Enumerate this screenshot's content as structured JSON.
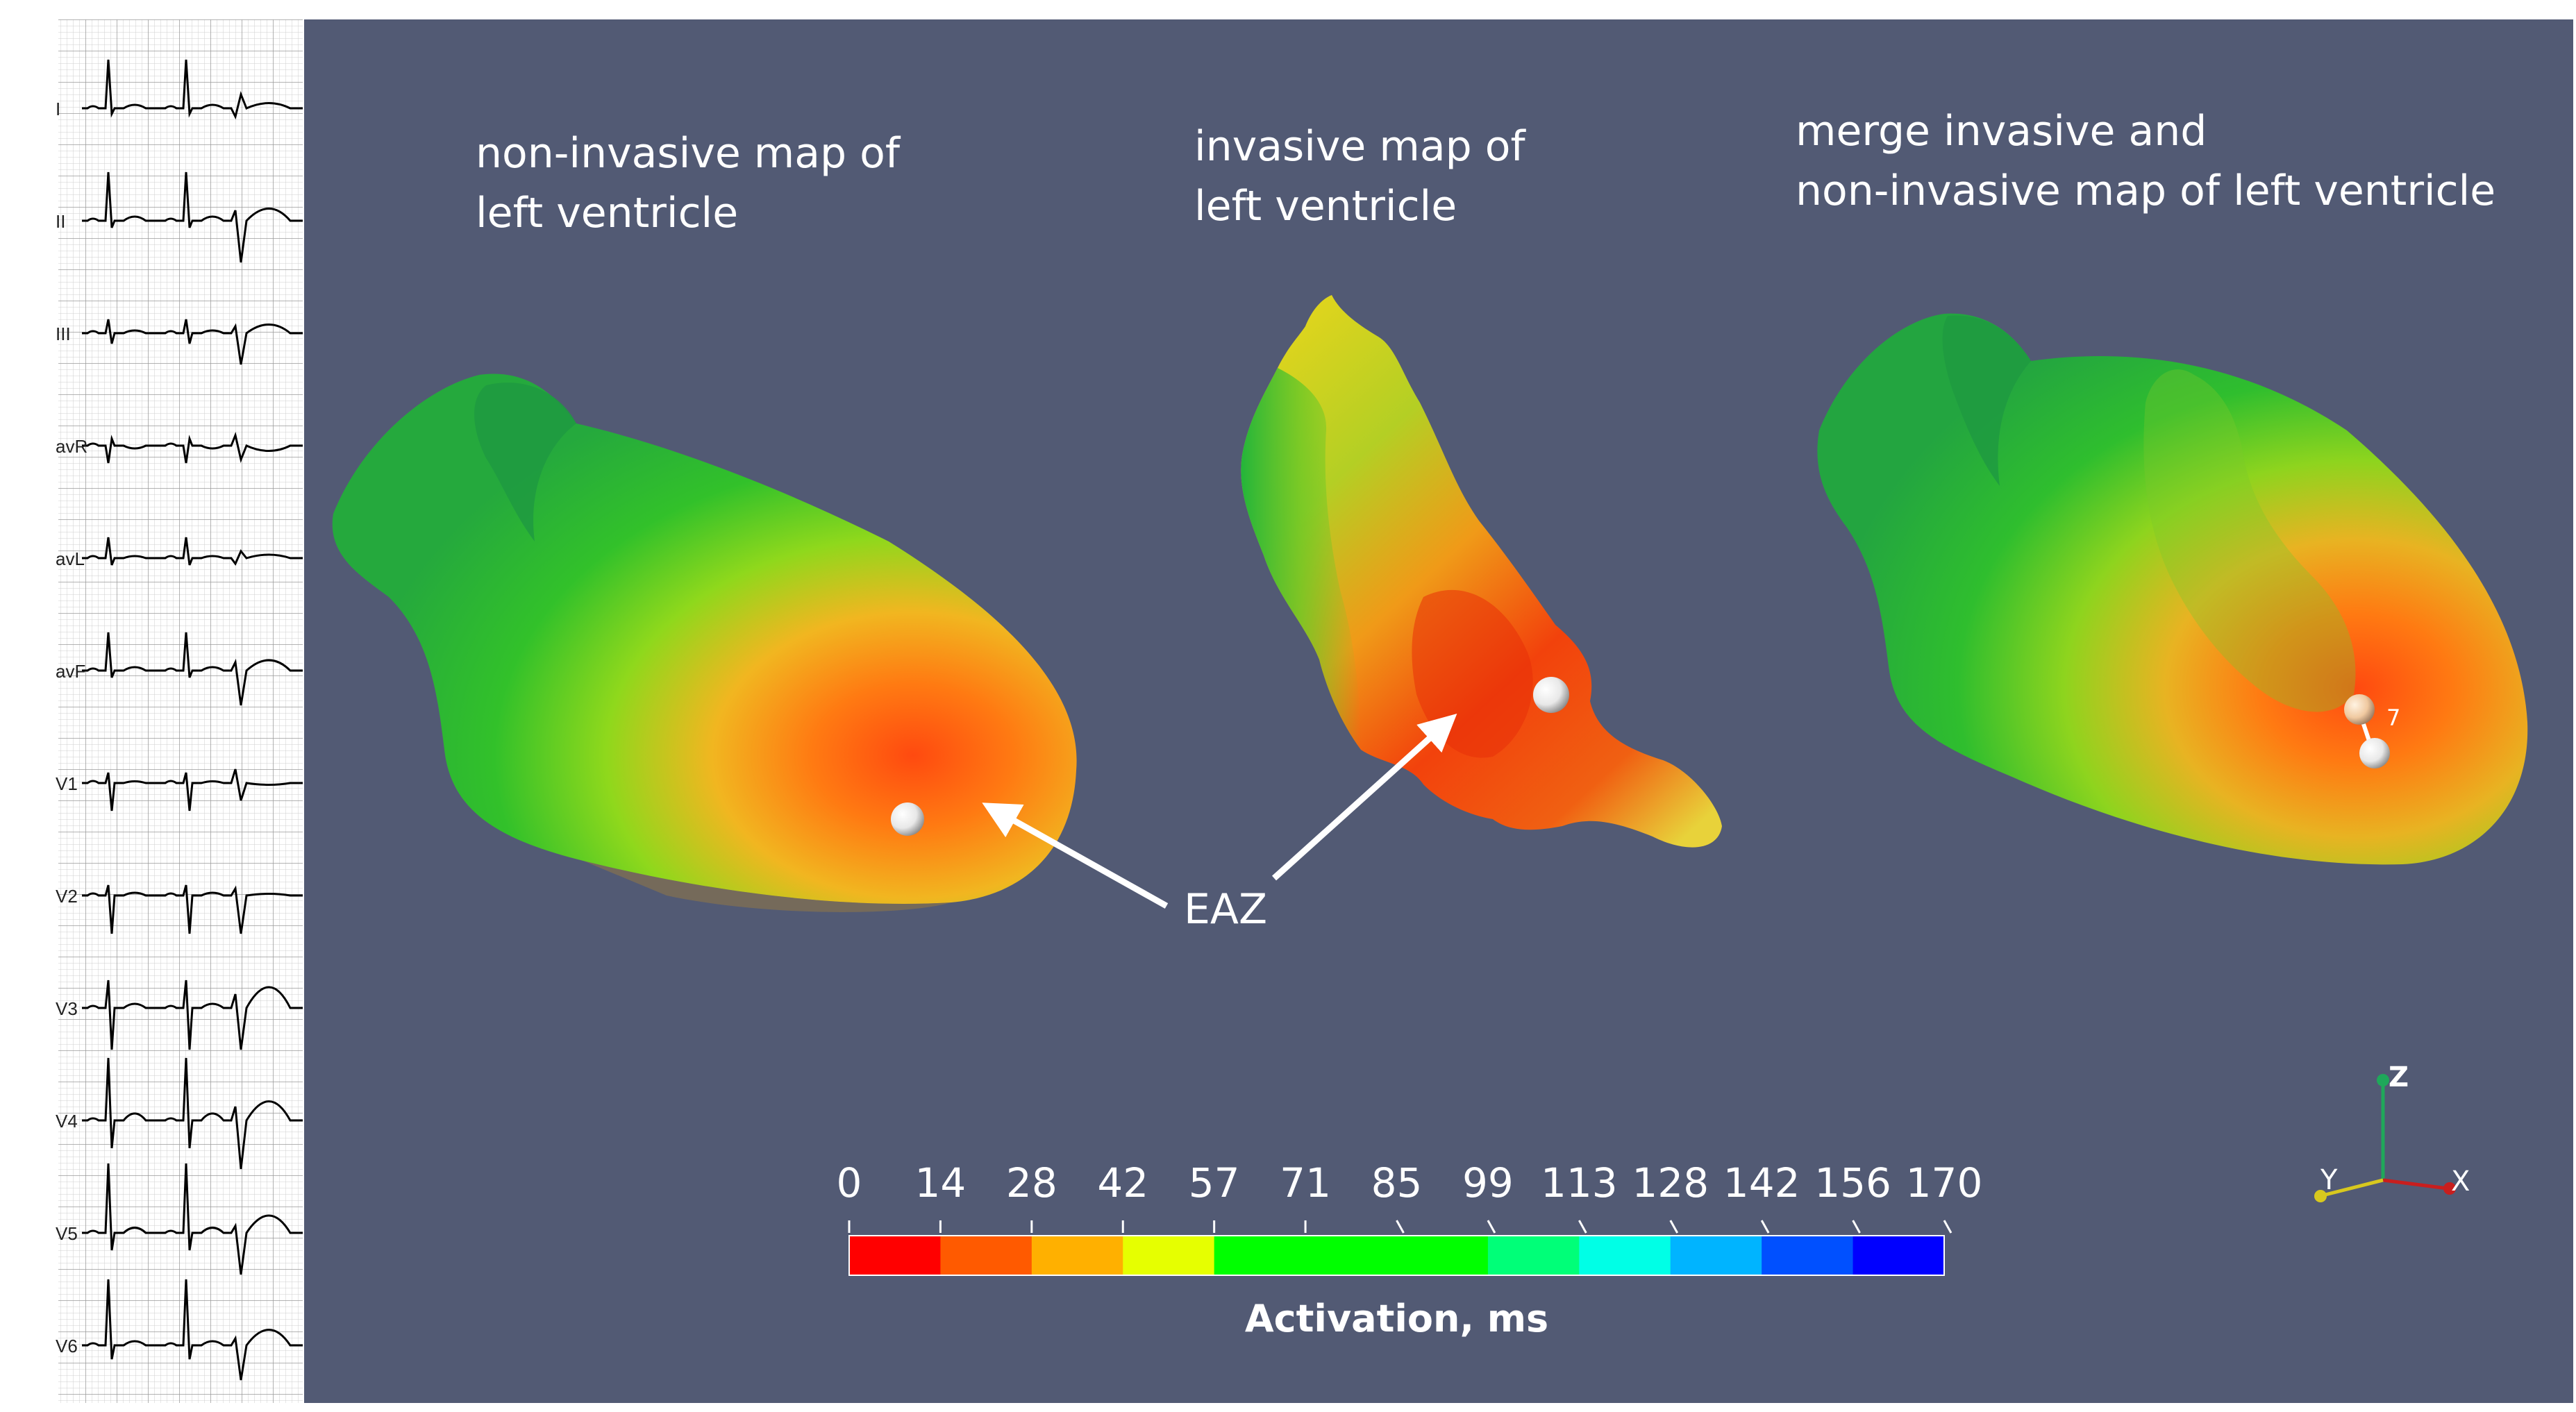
{
  "ecg": {
    "leads": [
      "I",
      "II",
      "III",
      "avR",
      "avL",
      "avF",
      "V1",
      "V2",
      "V3",
      "V4",
      "V5",
      "V6"
    ]
  },
  "maps": {
    "noninvasive": {
      "line1": "non-invasive map of",
      "line2": "left ventricle"
    },
    "invasive": {
      "line1": "invasive  map of",
      "line2": "left ventricle"
    },
    "merged": {
      "line1": "merge invasive and",
      "line2": "non-invasive map of left ventricle"
    },
    "distance_label": "7"
  },
  "annotation": {
    "label": "EAZ"
  },
  "colorbar": {
    "title": "Activation, ms",
    "ticks": [
      "0",
      "14",
      "28",
      "42",
      "57",
      "71",
      "85",
      "99",
      "113",
      "128",
      "142",
      "156",
      "170"
    ],
    "colors": [
      "#ff0000",
      "#ff5a00",
      "#ffb000",
      "#e6ff00",
      "#00ff00",
      "#00ff00",
      "#00ff00",
      "#00ff78",
      "#00ffe6",
      "#00b4ff",
      "#0050ff",
      "#0000ff"
    ]
  },
  "axes": {
    "x": "X",
    "y": "Y",
    "z": "Z"
  },
  "colors": {
    "background": "#525a74",
    "ecg_grid": "#bdbdbd",
    "trace": "#000000"
  }
}
